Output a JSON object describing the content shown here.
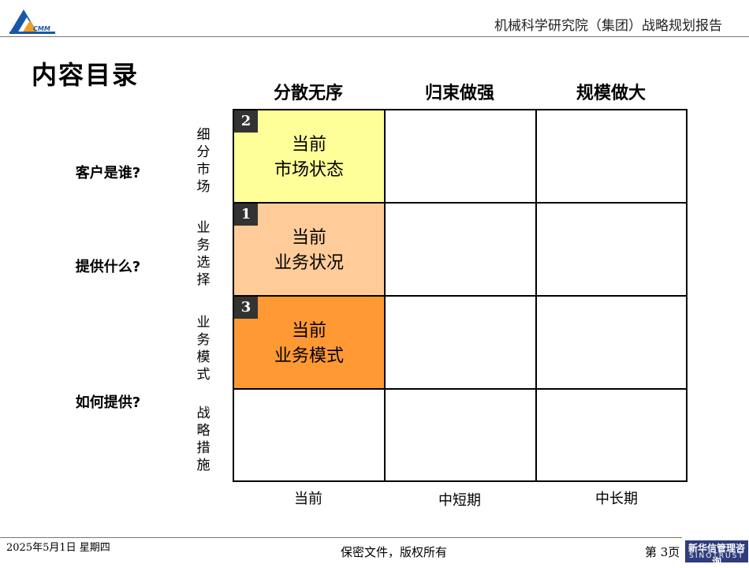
{
  "header": {
    "logo_text": "CMM",
    "title": "机械科学研究院（集团）战略规划报告"
  },
  "page_title": "内容目录",
  "columns": [
    "分散无序",
    "归束做强",
    "规模做大"
  ],
  "rows": {
    "questions": [
      "客户是谁?",
      "提供什么?",
      "如何提供?"
    ],
    "side_labels": [
      "细分市场",
      "业务选择",
      "业务模式",
      "战略措施"
    ]
  },
  "cells": [
    {
      "badge": "2",
      "line1": "当前",
      "line2": "市场状态",
      "color": "#ffff99"
    },
    {
      "badge": "1",
      "line1": "当前",
      "line2": "业务状况",
      "color": "#ffcc99"
    },
    {
      "badge": "3",
      "line1": "当前",
      "line2": "业务模式",
      "color": "#ff9933"
    }
  ],
  "axis": [
    "当前",
    "中短期",
    "中长期"
  ],
  "footer": {
    "date": "2025年5月1日  星期四",
    "confidential": "保密文件，版权所有",
    "page": "第 3页",
    "brand_line1": "新华信管理咨询",
    "brand_line2": "SINOTRUST"
  }
}
